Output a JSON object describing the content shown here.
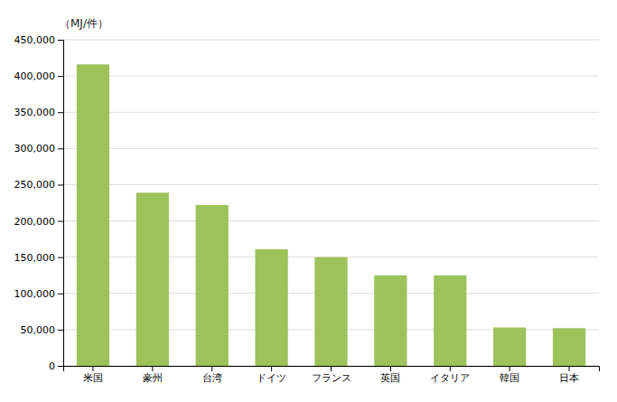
{
  "chart_data": {
    "type": "bar",
    "ylabel": "（MJ/件）",
    "categories": [
      "米国",
      "豪州",
      "台湾",
      "ドイツ",
      "フランス",
      "英国",
      "イタリア",
      "韓国",
      "日本"
    ],
    "values": [
      416000,
      239000,
      222000,
      161000,
      150000,
      125000,
      125000,
      53000,
      52000
    ],
    "color": "#9DC25A",
    "ylim": [
      0,
      450000
    ],
    "yticks": [
      0,
      {
        "value": 50000,
        "label": "50,000"
      },
      {
        "value": 100000,
        "label": "100,000"
      },
      {
        "value": 150000,
        "label": "150,000"
      },
      {
        "value": 200000,
        "label": "200,000"
      },
      {
        "value": 250000,
        "label": "250,000"
      },
      {
        "value": 300000,
        "label": "300,000"
      },
      {
        "value": 350000,
        "label": "350,000"
      },
      {
        "value": 400000,
        "label": "400,000"
      },
      {
        "value": 450000,
        "label": "450,000"
      }
    ],
    "grid": true
  }
}
